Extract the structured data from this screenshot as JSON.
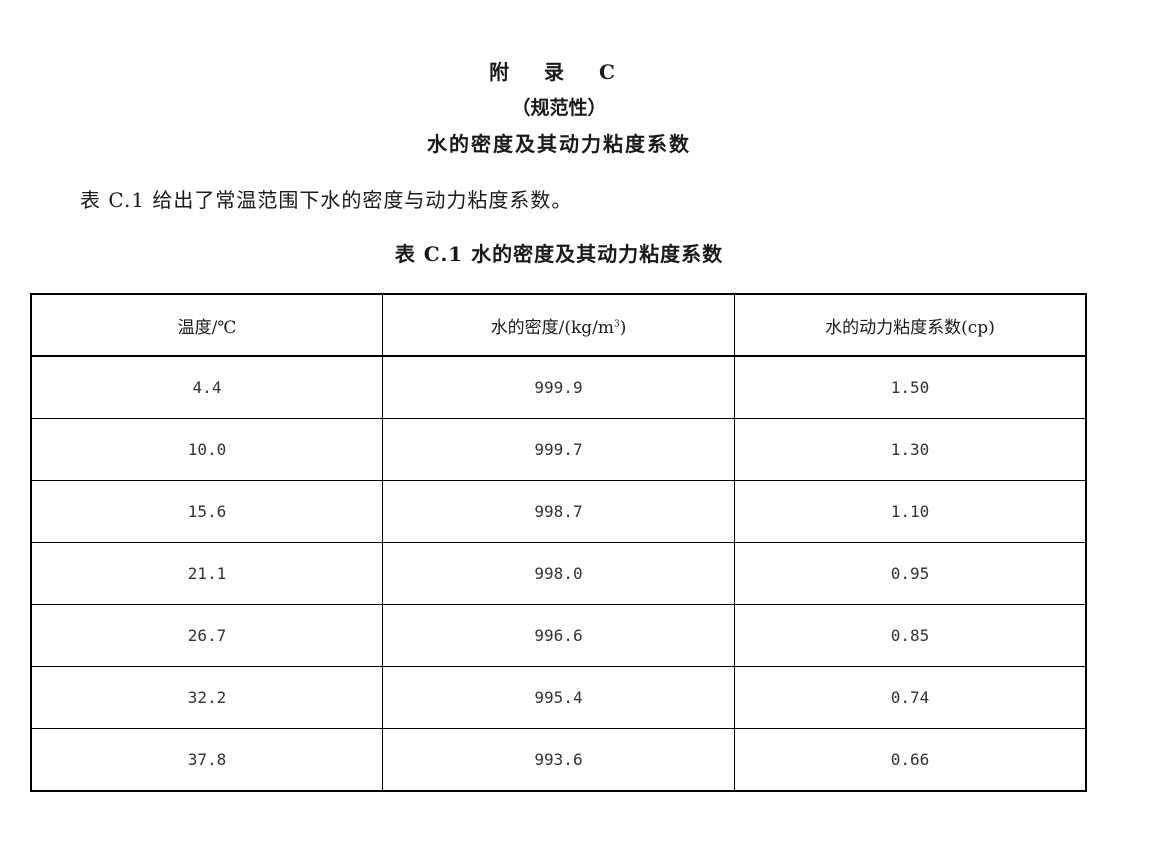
{
  "appendix": {
    "title": "附 录 C",
    "type": "（规范性）",
    "subject": "水的密度及其动力粘度系数"
  },
  "intro": "表 C.1 给出了常温范围下水的密度与动力粘度系数。",
  "table": {
    "caption": "表 C.1   水的密度及其动力粘度系数",
    "headers": [
      "温度/℃",
      "水的密度/(kg/m",
      "3",
      ")",
      "水的动力粘度系数(cp)"
    ],
    "rows": [
      [
        "4.4",
        "999.9",
        "1.50"
      ],
      [
        "10.0",
        "999.7",
        "1.30"
      ],
      [
        "15.6",
        "998.7",
        "1.10"
      ],
      [
        "21.1",
        "998.0",
        "0.95"
      ],
      [
        "26.7",
        "996.6",
        "0.85"
      ],
      [
        "32.2",
        "995.4",
        "0.74"
      ],
      [
        "37.8",
        "993.6",
        "0.66"
      ]
    ]
  }
}
